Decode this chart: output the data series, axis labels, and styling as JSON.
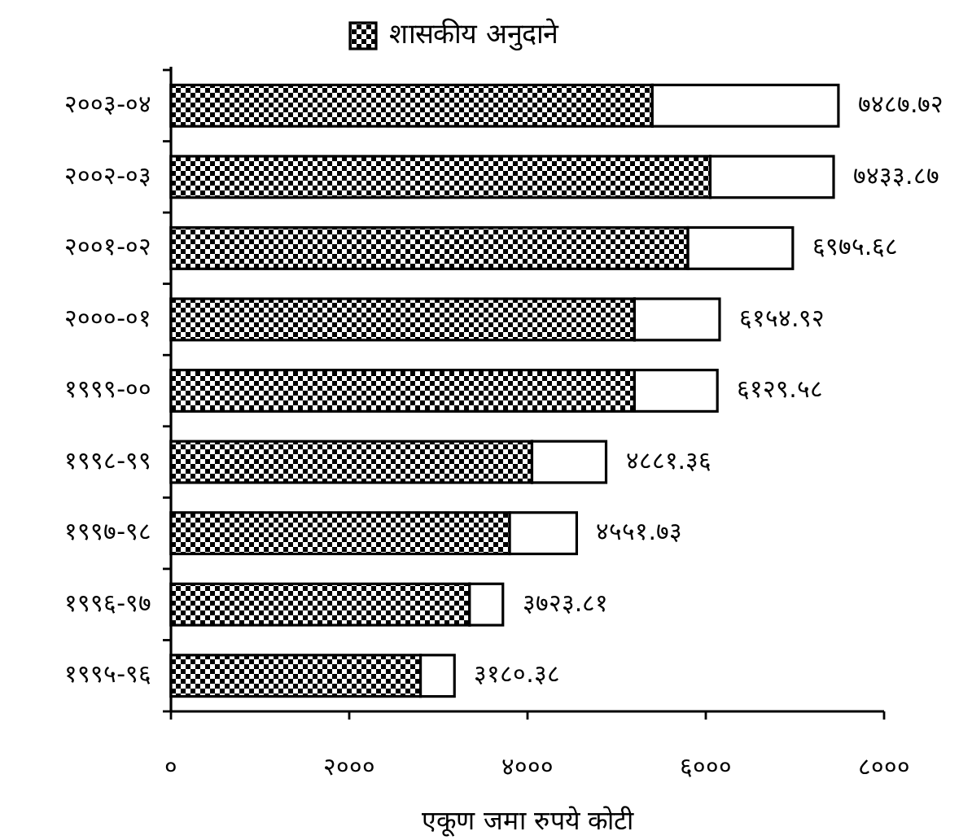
{
  "chart_data": {
    "type": "bar",
    "orientation": "horizontal",
    "stacked": true,
    "categories": [
      "२००३-०४",
      "२००२-०३",
      "२००१-०२",
      "२०००-०१",
      "१९९९-००",
      "१९९८-९९",
      "१९९७-९८",
      "१९९६-९७",
      "१९९५-९६"
    ],
    "series": [
      {
        "name": "शासकीय अनुदाने",
        "color": "#000000",
        "values": [
          5400,
          6050,
          5800,
          5200,
          5200,
          4050,
          3800,
          3350,
          2800
        ]
      },
      {
        "color": "#ffffff",
        "values": [
          2087.72,
          1383.87,
          1175.68,
          954.92,
          929.58,
          831.36,
          751.73,
          373.81,
          380.38
        ]
      }
    ],
    "totals": [
      "७४८७.७२",
      "७४३३.८७",
      "६९७५.६८",
      "६१५४.९२",
      "६१२९.५८",
      "४८८१.३६",
      "४५५१.७३",
      "३७२३.८१",
      "३१८०.३८"
    ],
    "xlim": [
      0,
      8000
    ],
    "xticks": [
      {
        "value": 0,
        "label": "०"
      },
      {
        "value": 2000,
        "label": "२०००"
      },
      {
        "value": 4000,
        "label": "४०००"
      },
      {
        "value": 6000,
        "label": "६०००"
      },
      {
        "value": 8000,
        "label": "८०००"
      }
    ],
    "xlabel": "एकूण जमा रुपये कोटी",
    "legend": "top"
  }
}
